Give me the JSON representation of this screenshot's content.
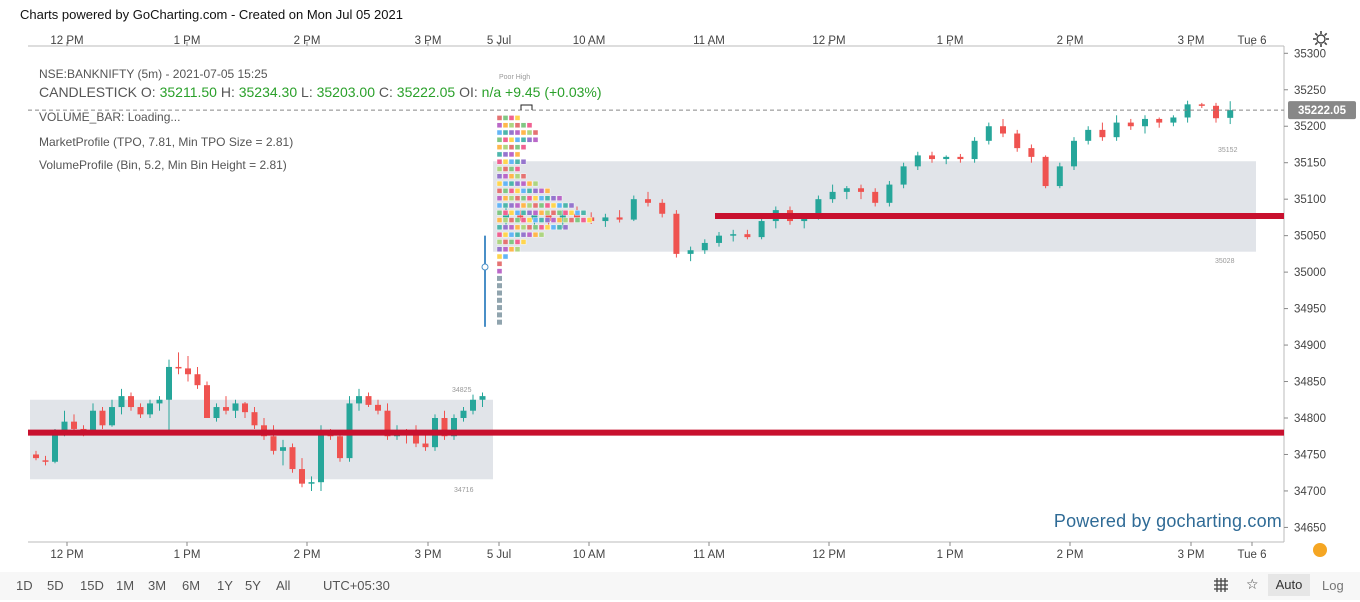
{
  "header": {
    "title": "Charts powered by GoCharting.com - Created on Mon Jul 05 2021"
  },
  "legend": {
    "symbol": "NSE:BANKNIFTY (5m) - 2021-07-05 15:25",
    "ohlc_prefix": "CANDLESTICK",
    "o_label": "O:",
    "o": "35211.50",
    "h_label": "H:",
    "h": "35234.30",
    "l_label": "L:",
    "l": "35203.00",
    "c_label": "C:",
    "c": "35222.05",
    "oi_label": "OI:",
    "oi": "n/a",
    "change": "+9.45",
    "change_pct": "(+0.03%)",
    "volume_bar": "VOLUME_BAR: Loading...",
    "market_profile": "MarketProfile (TPO, 7.81, Min TPO Size = 2.81)",
    "volume_profile": "VolumeProfile (Bin, 5.2, Min Bin Height = 2.81)"
  },
  "watermark": "Powered by gocharting.com",
  "bottom_bar": {
    "timeframes": [
      "1D",
      "5D",
      "15D",
      "1M",
      "3M",
      "6M",
      "1Y",
      "5Y",
      "All"
    ],
    "timezone": "UTC+05:30",
    "auto_label": "Auto",
    "log_label": "Log"
  },
  "colors": {
    "up": "#26a69a",
    "down": "#ef5350",
    "poc_line": "#c8102e",
    "value_area": "#dfe3e8",
    "price_tag": "#888888",
    "watermark": "#2f6b96"
  },
  "chart_data": {
    "type": "candlestick",
    "symbol": "NSE:BANKNIFTY",
    "interval": "5m",
    "x_ticks": [
      "12 PM",
      "1 PM",
      "2 PM",
      "3 PM",
      "5 Jul",
      "10 AM",
      "11 AM",
      "12 PM",
      "1 PM",
      "2 PM",
      "3 PM",
      "Tue 6"
    ],
    "y_ticks": [
      34650,
      34700,
      34750,
      34800,
      34850,
      34900,
      34950,
      35000,
      35050,
      35100,
      35150,
      35200,
      35250,
      35300
    ],
    "ylim": [
      34630,
      35310
    ],
    "last_price": "35222.05",
    "annotations": {
      "poor_high": "Poor High",
      "session1_va_high": "34825",
      "session1_va_low": "34716",
      "session2_va_high": "35152",
      "session2_va_low": "35028"
    },
    "sessions": [
      {
        "value_area": [
          34716,
          34825
        ],
        "poc": 34780,
        "candles": [
          [
            34750,
            34755,
            34742,
            34745
          ],
          [
            34742,
            34748,
            34735,
            34740
          ],
          [
            34740,
            34785,
            34738,
            34780
          ],
          [
            34780,
            34810,
            34775,
            34795
          ],
          [
            34795,
            34805,
            34780,
            34785
          ],
          [
            34785,
            34790,
            34775,
            34782
          ],
          [
            34782,
            34820,
            34780,
            34810
          ],
          [
            34810,
            34815,
            34785,
            34790
          ],
          [
            34790,
            34825,
            34788,
            34815
          ],
          [
            34815,
            34840,
            34805,
            34830
          ],
          [
            34830,
            34835,
            34810,
            34815
          ],
          [
            34815,
            34820,
            34800,
            34805
          ],
          [
            34805,
            34825,
            34800,
            34820
          ],
          [
            34820,
            34830,
            34810,
            34825
          ],
          [
            34825,
            34880,
            34780,
            34870
          ],
          [
            34870,
            34890,
            34860,
            34868
          ],
          [
            34868,
            34885,
            34850,
            34860
          ],
          [
            34860,
            34870,
            34840,
            34845
          ],
          [
            34845,
            34850,
            34800,
            34800
          ],
          [
            34800,
            34820,
            34795,
            34815
          ],
          [
            34815,
            34830,
            34805,
            34810
          ],
          [
            34810,
            34825,
            34800,
            34820
          ],
          [
            34820,
            34822,
            34800,
            34808
          ],
          [
            34808,
            34815,
            34785,
            34790
          ],
          [
            34790,
            34800,
            34770,
            34775
          ],
          [
            34775,
            34790,
            34750,
            34755
          ],
          [
            34755,
            34770,
            34735,
            34760
          ],
          [
            34760,
            34765,
            34725,
            34730
          ],
          [
            34730,
            34745,
            34705,
            34710
          ],
          [
            34710,
            34720,
            34700,
            34712
          ],
          [
            34712,
            34790,
            34700,
            34780
          ],
          [
            34780,
            34785,
            34770,
            34775
          ],
          [
            34775,
            34780,
            34740,
            34745
          ],
          [
            34745,
            34830,
            34740,
            34820
          ],
          [
            34820,
            34840,
            34810,
            34830
          ],
          [
            34830,
            34835,
            34815,
            34818
          ],
          [
            34818,
            34825,
            34805,
            34810
          ],
          [
            34810,
            34820,
            34770,
            34775
          ],
          [
            34775,
            34790,
            34770,
            34780
          ],
          [
            34780,
            34785,
            34765,
            34778
          ],
          [
            34778,
            34790,
            34760,
            34765
          ],
          [
            34765,
            34780,
            34755,
            34760
          ],
          [
            34760,
            34805,
            34755,
            34800
          ],
          [
            34800,
            34810,
            34770,
            34775
          ],
          [
            34775,
            34805,
            34770,
            34800
          ],
          [
            34800,
            34815,
            34795,
            34810
          ],
          [
            34810,
            34832,
            34805,
            34825
          ],
          [
            34825,
            34835,
            34815,
            34830
          ]
        ]
      },
      {
        "value_area": [
          35028,
          35152
        ],
        "poc": 35077,
        "candles": [
          [
            35075,
            35090,
            35065,
            35080
          ],
          [
            35080,
            35085,
            35070,
            35072
          ],
          [
            35072,
            35080,
            35060,
            35078
          ],
          [
            35078,
            35085,
            35065,
            35070
          ],
          [
            35070,
            35085,
            35060,
            35080
          ],
          [
            35080,
            35090,
            35070,
            35075
          ],
          [
            35075,
            35082,
            35066,
            35070
          ],
          [
            35070,
            35080,
            35062,
            35075
          ],
          [
            35075,
            35085,
            35068,
            35072
          ],
          [
            35072,
            35105,
            35070,
            35100
          ],
          [
            35100,
            35110,
            35090,
            35095
          ],
          [
            35095,
            35100,
            35075,
            35080
          ],
          [
            35080,
            35085,
            35020,
            35025
          ],
          [
            35025,
            35035,
            35015,
            35030
          ],
          [
            35030,
            35045,
            35025,
            35040
          ],
          [
            35040,
            35055,
            35035,
            35050
          ],
          [
            35050,
            35058,
            35042,
            35052
          ],
          [
            35052,
            35058,
            35045,
            35048
          ],
          [
            35048,
            35075,
            35045,
            35070
          ],
          [
            35070,
            35090,
            35060,
            35085
          ],
          [
            35085,
            35090,
            35065,
            35070
          ],
          [
            35070,
            35080,
            35060,
            35075
          ],
          [
            35075,
            35105,
            35072,
            35100
          ],
          [
            35100,
            35120,
            35095,
            35110
          ],
          [
            35110,
            35118,
            35100,
            35115
          ],
          [
            35115,
            35120,
            35100,
            35110
          ],
          [
            35110,
            35115,
            35090,
            35095
          ],
          [
            35095,
            35125,
            35090,
            35120
          ],
          [
            35120,
            35150,
            35115,
            35145
          ],
          [
            35145,
            35165,
            35140,
            35160
          ],
          [
            35160,
            35165,
            35150,
            35155
          ],
          [
            35155,
            35160,
            35148,
            35158
          ],
          [
            35158,
            35162,
            35150,
            35155
          ],
          [
            35155,
            35185,
            35150,
            35180
          ],
          [
            35180,
            35205,
            35175,
            35200
          ],
          [
            35200,
            35210,
            35185,
            35190
          ],
          [
            35190,
            35195,
            35165,
            35170
          ],
          [
            35170,
            35175,
            35150,
            35158
          ],
          [
            35158,
            35160,
            35115,
            35118
          ],
          [
            35118,
            35150,
            35115,
            35145
          ],
          [
            35145,
            35185,
            35140,
            35180
          ],
          [
            35180,
            35200,
            35175,
            35195
          ],
          [
            35195,
            35205,
            35180,
            35185
          ],
          [
            35185,
            35215,
            35180,
            35205
          ],
          [
            35205,
            35210,
            35195,
            35200
          ],
          [
            35200,
            35215,
            35190,
            35210
          ],
          [
            35210,
            35212,
            35198,
            35205
          ],
          [
            35205,
            35215,
            35200,
            35212
          ],
          [
            35212,
            35235,
            35205,
            35230
          ],
          [
            35230,
            35232,
            35225,
            35228
          ],
          [
            35228,
            35232,
            35205,
            35211
          ],
          [
            35211.5,
            35234.3,
            35203,
            35222.05
          ]
        ]
      }
    ]
  }
}
